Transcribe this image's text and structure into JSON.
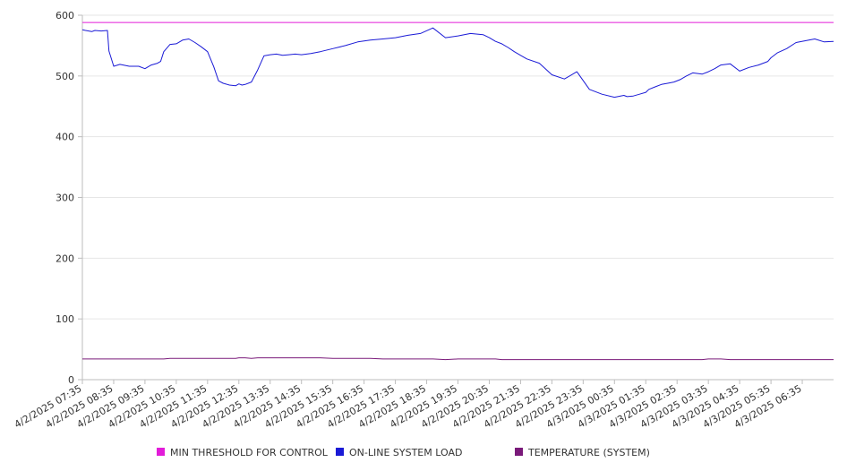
{
  "chart_data": {
    "type": "line",
    "title": "",
    "xlabel": "",
    "ylabel": "",
    "ylim": [
      0,
      600
    ],
    "y_ticks": [
      0,
      100,
      200,
      300,
      400,
      500,
      600
    ],
    "grid": true,
    "legend_position": "bottom",
    "x_tick_labels": [
      "4/2/2025 07:35",
      "4/2/2025 08:35",
      "4/2/2025 09:35",
      "4/2/2025 10:35",
      "4/2/2025 11:35",
      "4/2/2025 12:35",
      "4/2/2025 13:35",
      "4/2/2025 14:35",
      "4/2/2025 15:35",
      "4/2/2025 16:35",
      "4/2/2025 17:35",
      "4/2/2025 18:35",
      "4/2/2025 19:35",
      "4/2/2025 20:35",
      "4/2/2025 21:35",
      "4/2/2025 22:35",
      "4/2/2025 23:35",
      "4/3/2025 00:35",
      "4/3/2025 01:35",
      "4/3/2025 02:35",
      "4/3/2025 03:35",
      "4/3/2025 04:35",
      "4/3/2025 05:35",
      "4/3/2025 06:35"
    ],
    "x_hours": [
      0,
      0.1,
      0.2,
      0.3,
      0.4,
      0.6,
      0.8,
      0.85,
      1.0,
      1.2,
      1.5,
      1.8,
      2.0,
      2.2,
      2.4,
      2.5,
      2.6,
      2.8,
      3.0,
      3.2,
      3.4,
      3.6,
      3.8,
      4.0,
      4.2,
      4.35,
      4.5,
      4.7,
      4.9,
      5.0,
      5.1,
      5.2,
      5.4,
      5.6,
      5.8,
      6.0,
      6.2,
      6.4,
      6.6,
      6.8,
      7.0,
      7.3,
      7.6,
      8.0,
      8.4,
      8.8,
      9.2,
      9.6,
      10.0,
      10.4,
      10.8,
      11.2,
      11.6,
      12.0,
      12.4,
      12.8,
      13.0,
      13.2,
      13.4,
      13.6,
      13.8,
      14.0,
      14.2,
      14.6,
      15.0,
      15.4,
      15.8,
      16.2,
      16.6,
      17.0,
      17.3,
      17.4,
      17.6,
      17.8,
      18.0,
      18.1,
      18.3,
      18.5,
      18.7,
      18.9,
      19.1,
      19.3,
      19.5,
      19.8,
      20.0,
      20.2,
      20.4,
      20.7,
      21.0,
      21.3,
      21.6,
      21.9,
      22.0,
      22.2,
      22.5,
      22.8,
      23.1,
      23.4,
      23.7,
      24.0
    ],
    "series": [
      {
        "name": "MIN THRESHOLD FOR CONTROL",
        "color": "#e21cd9",
        "values": [
          588,
          588,
          588,
          588,
          588,
          588,
          588,
          588,
          588,
          588,
          588,
          588,
          588,
          588,
          588,
          588,
          588,
          588,
          588,
          588,
          588,
          588,
          588,
          588,
          588,
          588,
          588,
          588,
          588,
          588,
          588,
          588,
          588,
          588,
          588,
          588,
          588,
          588,
          588,
          588,
          588,
          588,
          588,
          588,
          588,
          588,
          588,
          588,
          588,
          588,
          588,
          588,
          588,
          588,
          588,
          588,
          588,
          588,
          588,
          588,
          588,
          588,
          588,
          588,
          588,
          588,
          588,
          588,
          588,
          588,
          588,
          588,
          588,
          588,
          588,
          588,
          588,
          588,
          588,
          588,
          588,
          588,
          588,
          588,
          588,
          588,
          588,
          588,
          588,
          588,
          588,
          588,
          588,
          588,
          588,
          588,
          588,
          588,
          588,
          588
        ]
      },
      {
        "name": "ON-LINE SYSTEM LOAD",
        "color": "#1a1ad6",
        "values": [
          576,
          575,
          574,
          573,
          575,
          574,
          575,
          541,
          516,
          519,
          516,
          516,
          512,
          518,
          521,
          524,
          540,
          552,
          553,
          559,
          561,
          555,
          548,
          540,
          515,
          492,
          488,
          485,
          484,
          487,
          485,
          486,
          490,
          510,
          533,
          535,
          536,
          534,
          535,
          536,
          535,
          537,
          540,
          545,
          550,
          556,
          559,
          561,
          563,
          567,
          570,
          579,
          563,
          566,
          570,
          568,
          563,
          557,
          553,
          547,
          540,
          534,
          528,
          521,
          502,
          495,
          507,
          478,
          470,
          465,
          468,
          466,
          467,
          470,
          473,
          478,
          482,
          486,
          488,
          490,
          494,
          500,
          505,
          503,
          507,
          512,
          518,
          520,
          508,
          514,
          518,
          524,
          530,
          538,
          545,
          555,
          558,
          561,
          556,
          557
        ]
      },
      {
        "name": "TEMPERATURE (SYSTEM)",
        "color": "#7a1a7a",
        "values": [
          34,
          34,
          34,
          34,
          34,
          34,
          34,
          34,
          34,
          34,
          34,
          34,
          34,
          34,
          34,
          34,
          34,
          35,
          35,
          35,
          35,
          35,
          35,
          35,
          35,
          35,
          35,
          35,
          35,
          36,
          36,
          36,
          35,
          36,
          36,
          36,
          36,
          36,
          36,
          36,
          36,
          36,
          36,
          35,
          35,
          35,
          35,
          34,
          34,
          34,
          34,
          34,
          33,
          34,
          34,
          34,
          34,
          34,
          33,
          33,
          33,
          33,
          33,
          33,
          33,
          33,
          33,
          33,
          33,
          33,
          33,
          33,
          33,
          33,
          33,
          33,
          33,
          33,
          33,
          33,
          33,
          33,
          33,
          33,
          34,
          34,
          34,
          33,
          33,
          33,
          33,
          33,
          33,
          33,
          33,
          33,
          33,
          33,
          33,
          33
        ]
      }
    ]
  }
}
